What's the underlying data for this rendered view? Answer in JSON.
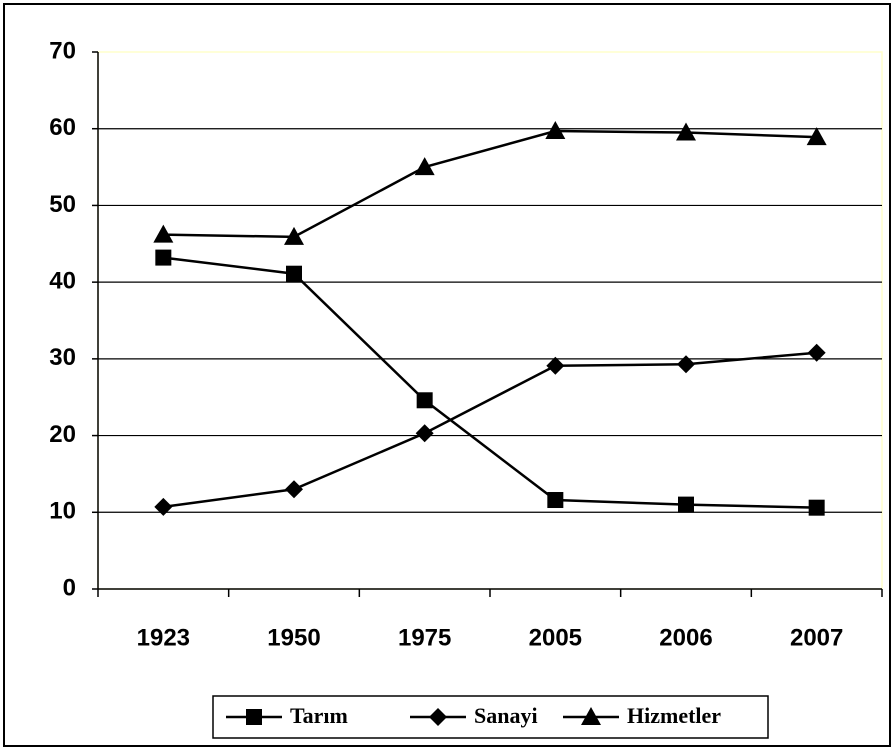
{
  "chart_data": {
    "type": "line",
    "categories": [
      "1923",
      "1950",
      "1975",
      "2005",
      "2006",
      "2007"
    ],
    "series": [
      {
        "name": "Tarım",
        "color": "#000000",
        "marker": "square",
        "values": [
          43.2,
          41.1,
          24.6,
          11.6,
          11.0,
          10.6
        ]
      },
      {
        "name": "Sanayi",
        "color": "#000000",
        "marker": "diamond",
        "values": [
          10.7,
          13.0,
          20.3,
          29.1,
          29.3,
          30.8
        ]
      },
      {
        "name": "Hizmetler",
        "color": "#000000",
        "marker": "triangle",
        "values": [
          46.2,
          45.9,
          55.0,
          59.7,
          59.5,
          58.9
        ]
      }
    ],
    "ylim": [
      0,
      70
    ],
    "yticks": [
      0,
      10,
      20,
      30,
      40,
      50,
      60,
      70
    ],
    "grid": true,
    "legend": "bottom"
  }
}
